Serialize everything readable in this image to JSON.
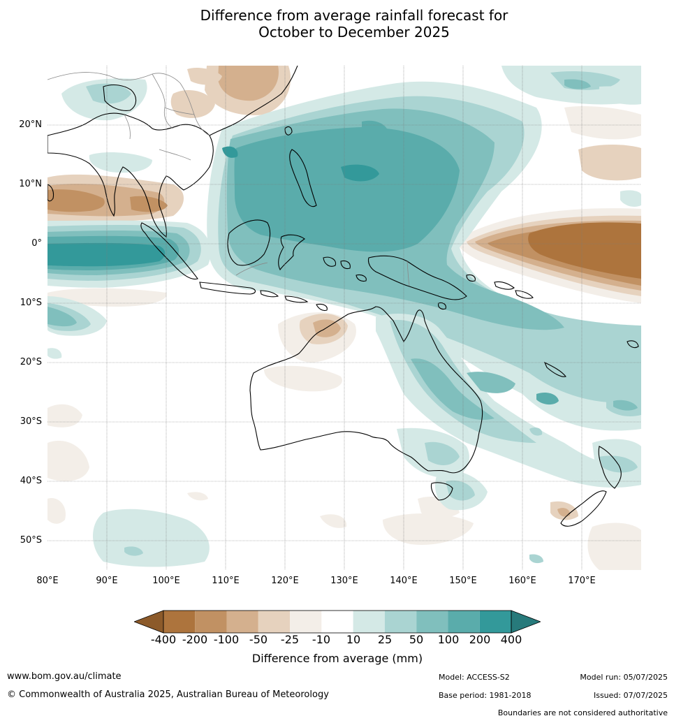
{
  "title": {
    "line1": "Difference from average rainfall forecast for",
    "line2": "October to December 2025"
  },
  "map": {
    "lat_labels": [
      "20°N",
      "10°N",
      "0°",
      "10°S",
      "20°S",
      "30°S",
      "40°S",
      "50°S"
    ],
    "lon_labels": [
      "80°E",
      "90°E",
      "100°E",
      "110°E",
      "120°E",
      "130°E",
      "140°E",
      "150°E",
      "160°E",
      "170°E"
    ]
  },
  "legend": {
    "title": "Difference from average (mm)",
    "ticks": [
      "-400",
      "-200",
      "-100",
      "-50",
      "-25",
      "-10",
      "10",
      "25",
      "50",
      "100",
      "200",
      "400"
    ],
    "colors": [
      "#8c5a2a",
      "#ad743d",
      "#c19163",
      "#d4b08e",
      "#e6d2be",
      "#f3eee8",
      "#ffffff",
      "#d4e9e6",
      "#aad4d2",
      "#80bfbd",
      "#5aacab",
      "#33999a",
      "#277a7b"
    ]
  },
  "footer": {
    "website": "www.bom.gov.au/climate",
    "copyright": "© Commonwealth of Australia 2025, Australian Bureau of Meteorology",
    "model": "Model: ACCESS-S2",
    "base_period": "Base period: 1981-2018",
    "model_run": "Model run: 05/07/2025",
    "issued": "Issued: 07/07/2025",
    "disclaimer": "Boundaries are not considered authoritative"
  }
}
